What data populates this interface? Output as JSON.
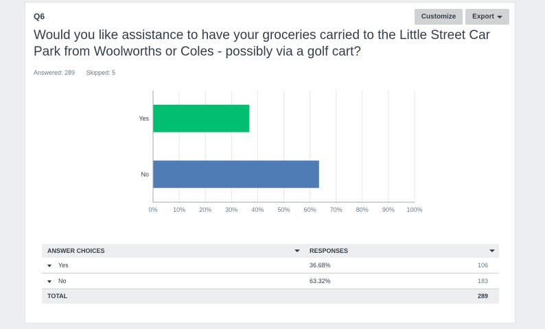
{
  "question": {
    "number": "Q6",
    "text": "Would you like assistance to have your groceries carried to the Little Street Car Park from Woolworths or Coles - possibly via a golf cart?",
    "answered": "Answered: 289",
    "skipped": "Skipped: 5"
  },
  "toolbar": {
    "customize_label": "Customize",
    "export_label": "Export"
  },
  "chart_data": {
    "type": "bar",
    "orientation": "horizontal",
    "categories": [
      "Yes",
      "No"
    ],
    "values": [
      36.68,
      63.32
    ],
    "colors": [
      "#00bf6f",
      "#507cb6"
    ],
    "xlim": [
      0,
      100
    ],
    "tick_labels": [
      "0%",
      "10%",
      "20%",
      "30%",
      "40%",
      "50%",
      "60%",
      "70%",
      "80%",
      "90%",
      "100%"
    ],
    "grid": true
  },
  "table": {
    "headers": {
      "choices": "ANSWER CHOICES",
      "responses": "RESPONSES"
    },
    "rows": [
      {
        "label": "Yes",
        "percent": "36.68%",
        "count": "106"
      },
      {
        "label": "No",
        "percent": "63.32%",
        "count": "183"
      }
    ],
    "total": {
      "label": "TOTAL",
      "count": "289"
    }
  }
}
